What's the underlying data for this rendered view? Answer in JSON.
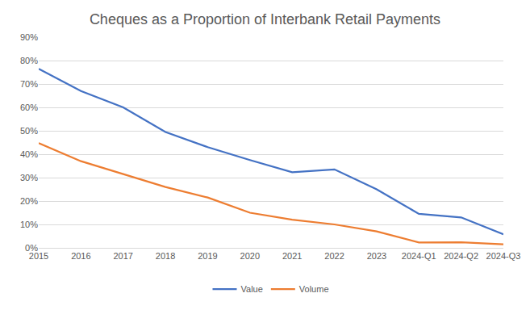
{
  "chart_data": {
    "type": "line",
    "title": "Cheques as a Proportion of Interbank Retail Payments",
    "categories": [
      "2015",
      "2016",
      "2017",
      "2018",
      "2019",
      "2020",
      "2021",
      "2022",
      "2023",
      "2024-Q1",
      "2024-Q2",
      "2024-Q3"
    ],
    "series": [
      {
        "name": "Value",
        "color": "#4472c4",
        "values": [
          76.5,
          67,
          60,
          49.5,
          43,
          37.5,
          32.3,
          33.5,
          25,
          14.5,
          13,
          5.8
        ]
      },
      {
        "name": "Volume",
        "color": "#ed7d31",
        "values": [
          44.7,
          37,
          31.5,
          26,
          21.5,
          15,
          12,
          10,
          7,
          2.3,
          2.4,
          1.5
        ]
      }
    ],
    "ylim": [
      0,
      90
    ],
    "yticks": [
      {
        "value": 0,
        "label": "0%"
      },
      {
        "value": 10,
        "label": "10%"
      },
      {
        "value": 20,
        "label": "20%"
      },
      {
        "value": 30,
        "label": "30%"
      },
      {
        "value": 40,
        "label": "40%"
      },
      {
        "value": 50,
        "label": "50%"
      },
      {
        "value": 60,
        "label": "60%"
      },
      {
        "value": 70,
        "label": "70%"
      },
      {
        "value": 80,
        "label": "80%"
      },
      {
        "value": 90,
        "label": "90%"
      }
    ],
    "grid": true,
    "legend": "bottom"
  }
}
